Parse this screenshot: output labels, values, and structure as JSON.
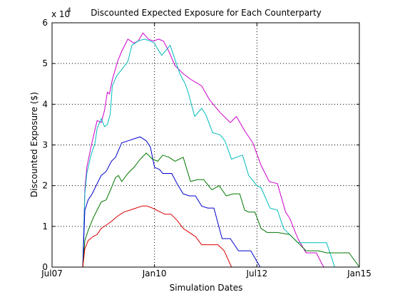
{
  "chart_data": {
    "type": "line",
    "title": "Discounted Expected Exposure for Each Counterparty",
    "xlabel": "Simulation Dates",
    "ylabel": "Discounted Exposure ($)",
    "y_exponent_label": "x 10",
    "y_exponent_power": "4",
    "x_ticks": [
      {
        "label": "Jul07",
        "value": 2007.5
      },
      {
        "label": "Jan10",
        "value": 2010.0
      },
      {
        "label": "Jul12",
        "value": 2012.5
      },
      {
        "label": "Jan15",
        "value": 2015.0
      }
    ],
    "y_ticks": [
      {
        "label": "0",
        "value": 0
      },
      {
        "label": "1",
        "value": 1
      },
      {
        "label": "2",
        "value": 2
      },
      {
        "label": "3",
        "value": 3
      },
      {
        "label": "4",
        "value": 4
      },
      {
        "label": "5",
        "value": 5
      },
      {
        "label": "6",
        "value": 6
      }
    ],
    "xlim": [
      2007.5,
      2015.0
    ],
    "ylim": [
      0,
      6
    ],
    "grid": true,
    "grid_style": "dotted",
    "legend": "none",
    "series": [
      {
        "color": "#cc00cc",
        "points": [
          [
            2008.25,
            0
          ],
          [
            2008.3,
            1.9
          ],
          [
            2008.35,
            2.45
          ],
          [
            2008.45,
            2.95
          ],
          [
            2008.6,
            3.6
          ],
          [
            2008.7,
            3.55
          ],
          [
            2008.78,
            3.85
          ],
          [
            2008.85,
            4.3
          ],
          [
            2008.9,
            4.25
          ],
          [
            2008.97,
            4.6
          ],
          [
            2009.1,
            5.05
          ],
          [
            2009.2,
            5.3
          ],
          [
            2009.35,
            5.6
          ],
          [
            2009.5,
            5.5
          ],
          [
            2009.6,
            5.55
          ],
          [
            2009.72,
            5.75
          ],
          [
            2009.85,
            5.6
          ],
          [
            2009.97,
            5.55
          ],
          [
            2010.1,
            5.6
          ],
          [
            2010.22,
            5.55
          ],
          [
            2010.35,
            5.3
          ],
          [
            2010.5,
            4.95
          ],
          [
            2010.7,
            4.75
          ],
          [
            2010.9,
            4.6
          ],
          [
            2011.15,
            4.45
          ],
          [
            2011.35,
            4.1
          ],
          [
            2011.6,
            3.8
          ],
          [
            2011.85,
            3.55
          ],
          [
            2012.0,
            3.7
          ],
          [
            2012.2,
            3.35
          ],
          [
            2012.4,
            3.05
          ],
          [
            2012.6,
            2.5
          ],
          [
            2012.8,
            2.1
          ],
          [
            2013.0,
            2.05
          ],
          [
            2013.2,
            1.35
          ],
          [
            2013.3,
            1.2
          ],
          [
            2013.5,
            0.7
          ],
          [
            2013.7,
            0.35
          ],
          [
            2013.95,
            0.35
          ],
          [
            2014.1,
            0.05
          ],
          [
            2014.14,
            0
          ]
        ]
      },
      {
        "color": "#00bbbb",
        "points": [
          [
            2008.25,
            0
          ],
          [
            2008.3,
            1.8
          ],
          [
            2008.35,
            2.3
          ],
          [
            2008.45,
            2.75
          ],
          [
            2008.55,
            3.05
          ],
          [
            2008.6,
            3.4
          ],
          [
            2008.7,
            3.65
          ],
          [
            2008.78,
            3.45
          ],
          [
            2008.85,
            3.5
          ],
          [
            2008.92,
            3.75
          ],
          [
            2008.97,
            4.45
          ],
          [
            2009.08,
            4.7
          ],
          [
            2009.2,
            4.85
          ],
          [
            2009.35,
            5.05
          ],
          [
            2009.45,
            5.45
          ],
          [
            2009.6,
            5.55
          ],
          [
            2009.75,
            5.6
          ],
          [
            2009.9,
            5.55
          ],
          [
            2010.0,
            5.5
          ],
          [
            2010.08,
            5.35
          ],
          [
            2010.18,
            5.2
          ],
          [
            2010.3,
            5.35
          ],
          [
            2010.38,
            5.45
          ],
          [
            2010.5,
            5.1
          ],
          [
            2010.62,
            4.75
          ],
          [
            2010.75,
            4.5
          ],
          [
            2010.82,
            4.3
          ],
          [
            2010.98,
            3.7
          ],
          [
            2011.15,
            3.9
          ],
          [
            2011.25,
            3.75
          ],
          [
            2011.42,
            3.3
          ],
          [
            2011.6,
            3.25
          ],
          [
            2011.72,
            3.1
          ],
          [
            2011.88,
            2.65
          ],
          [
            2012.0,
            2.7
          ],
          [
            2012.15,
            2.75
          ],
          [
            2012.3,
            2.25
          ],
          [
            2012.5,
            2.0
          ],
          [
            2012.6,
            1.95
          ],
          [
            2012.82,
            1.45
          ],
          [
            2013.0,
            1.4
          ],
          [
            2013.15,
            0.95
          ],
          [
            2013.3,
            0.8
          ],
          [
            2013.5,
            0.6
          ],
          [
            2013.7,
            0.6
          ],
          [
            2013.95,
            0.6
          ],
          [
            2014.2,
            0.6
          ],
          [
            2014.4,
            0
          ]
        ]
      },
      {
        "color": "#0000cc",
        "points": [
          [
            2008.25,
            0
          ],
          [
            2008.3,
            1.4
          ],
          [
            2008.38,
            1.65
          ],
          [
            2008.48,
            1.8
          ],
          [
            2008.6,
            2.05
          ],
          [
            2008.7,
            2.25
          ],
          [
            2008.82,
            2.35
          ],
          [
            2008.95,
            2.6
          ],
          [
            2009.05,
            2.7
          ],
          [
            2009.2,
            3.05
          ],
          [
            2009.35,
            3.1
          ],
          [
            2009.5,
            3.15
          ],
          [
            2009.65,
            3.2
          ],
          [
            2009.8,
            3.1
          ],
          [
            2009.9,
            2.95
          ],
          [
            2010.0,
            2.45
          ],
          [
            2010.12,
            2.4
          ],
          [
            2010.2,
            2.3
          ],
          [
            2010.3,
            2.3
          ],
          [
            2010.42,
            2.3
          ],
          [
            2010.55,
            2.05
          ],
          [
            2010.7,
            1.8
          ],
          [
            2010.85,
            1.75
          ],
          [
            2011.0,
            1.75
          ],
          [
            2011.15,
            1.5
          ],
          [
            2011.3,
            1.45
          ],
          [
            2011.45,
            1.45
          ],
          [
            2011.65,
            0.7
          ],
          [
            2011.85,
            0.7
          ],
          [
            2012.05,
            0.4
          ],
          [
            2012.35,
            0.4
          ],
          [
            2012.58,
            0.0
          ]
        ]
      },
      {
        "color": "#007700",
        "points": [
          [
            2008.25,
            0
          ],
          [
            2008.3,
            0.65
          ],
          [
            2008.38,
            0.9
          ],
          [
            2008.5,
            1.2
          ],
          [
            2008.6,
            1.4
          ],
          [
            2008.7,
            1.6
          ],
          [
            2008.82,
            1.65
          ],
          [
            2008.95,
            1.95
          ],
          [
            2009.05,
            2.2
          ],
          [
            2009.12,
            2.25
          ],
          [
            2009.2,
            2.1
          ],
          [
            2009.35,
            2.3
          ],
          [
            2009.5,
            2.45
          ],
          [
            2009.65,
            2.65
          ],
          [
            2009.8,
            2.8
          ],
          [
            2009.95,
            2.65
          ],
          [
            2010.08,
            2.6
          ],
          [
            2010.2,
            2.75
          ],
          [
            2010.35,
            2.7
          ],
          [
            2010.5,
            2.6
          ],
          [
            2010.7,
            2.7
          ],
          [
            2010.88,
            2.1
          ],
          [
            2011.05,
            2.15
          ],
          [
            2011.2,
            2.15
          ],
          [
            2011.4,
            1.9
          ],
          [
            2011.58,
            2.0
          ],
          [
            2011.75,
            1.75
          ],
          [
            2011.92,
            1.8
          ],
          [
            2012.08,
            1.8
          ],
          [
            2012.2,
            1.4
          ],
          [
            2012.3,
            1.35
          ],
          [
            2012.45,
            1.35
          ],
          [
            2012.6,
            0.95
          ],
          [
            2012.75,
            0.85
          ],
          [
            2013.0,
            0.85
          ],
          [
            2013.3,
            0.8
          ],
          [
            2013.5,
            0.6
          ],
          [
            2013.7,
            0.4
          ],
          [
            2014.0,
            0.4
          ],
          [
            2014.2,
            0.35
          ],
          [
            2014.5,
            0.35
          ],
          [
            2014.75,
            0.35
          ],
          [
            2015.0,
            0.0
          ]
        ]
      },
      {
        "color": "#dd0000",
        "points": [
          [
            2008.25,
            0
          ],
          [
            2008.3,
            0.45
          ],
          [
            2008.38,
            0.65
          ],
          [
            2008.5,
            0.75
          ],
          [
            2008.6,
            0.8
          ],
          [
            2008.7,
            0.95
          ],
          [
            2008.85,
            1.05
          ],
          [
            2008.98,
            1.15
          ],
          [
            2009.1,
            1.25
          ],
          [
            2009.25,
            1.35
          ],
          [
            2009.4,
            1.4
          ],
          [
            2009.55,
            1.45
          ],
          [
            2009.7,
            1.5
          ],
          [
            2009.82,
            1.5
          ],
          [
            2009.95,
            1.45
          ],
          [
            2010.05,
            1.4
          ],
          [
            2010.15,
            1.35
          ],
          [
            2010.25,
            1.3
          ],
          [
            2010.4,
            1.3
          ],
          [
            2010.55,
            1.15
          ],
          [
            2010.7,
            0.95
          ],
          [
            2010.85,
            0.85
          ],
          [
            2011.0,
            0.75
          ],
          [
            2011.15,
            0.55
          ],
          [
            2011.3,
            0.55
          ],
          [
            2011.55,
            0.55
          ],
          [
            2011.7,
            0.4
          ],
          [
            2011.88,
            0.0
          ]
        ]
      }
    ]
  }
}
